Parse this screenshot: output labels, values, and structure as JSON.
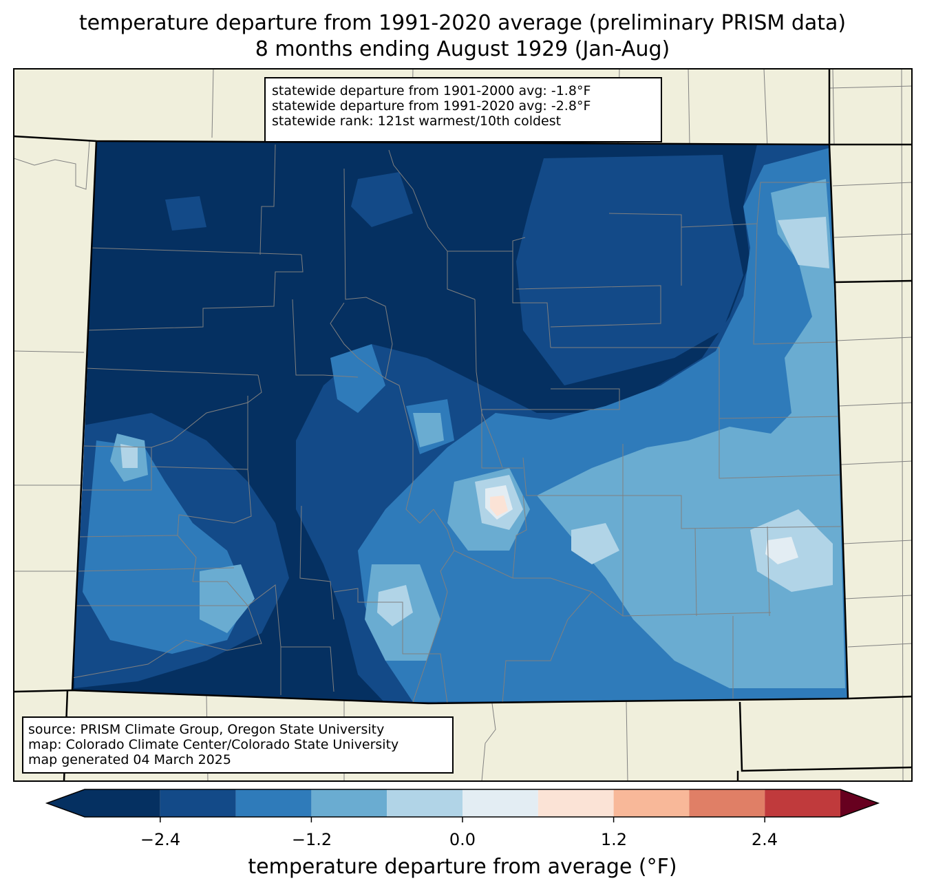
{
  "title": {
    "line1": "temperature departure from 1991-2020 average (preliminary PRISM data)",
    "line2": "8 months ending August 1929 (Jan-Aug)"
  },
  "stats": {
    "line1": "statewide departure from 1901-2000 avg: -1.8°F",
    "line2": "statewide departure from 1991-2020 avg: -2.8°F",
    "line3": "statewide rank: 121st warmest/10th coldest"
  },
  "credits": {
    "line1": "source: PRISM Climate Group, Oregon State University",
    "line2": "map: Colorado Climate Center/Colorado State University",
    "line3": "map generated 04 March 2025"
  },
  "colorbar": {
    "label": "temperature departure from average (°F)",
    "ticks": [
      "−2.4",
      "−1.2",
      "0.0",
      "1.2",
      "2.4"
    ],
    "levels": [
      -3.0,
      -2.4,
      -1.8,
      -1.2,
      -0.6,
      0.0,
      0.6,
      1.2,
      1.8,
      2.4,
      3.0
    ],
    "colors": [
      "#053061",
      "#134a88",
      "#2f7bba",
      "#6aacd1",
      "#b1d4e7",
      "#e3edf3",
      "#fbe3d6",
      "#f8b899",
      "#e07f66",
      "#c03a3c",
      "#860b25"
    ],
    "under_color": "#053061",
    "over_color": "#67001f"
  },
  "map_colors": {
    "land": "#f0efdc",
    "county_lines": "#808080",
    "state_lines": "#000000"
  }
}
